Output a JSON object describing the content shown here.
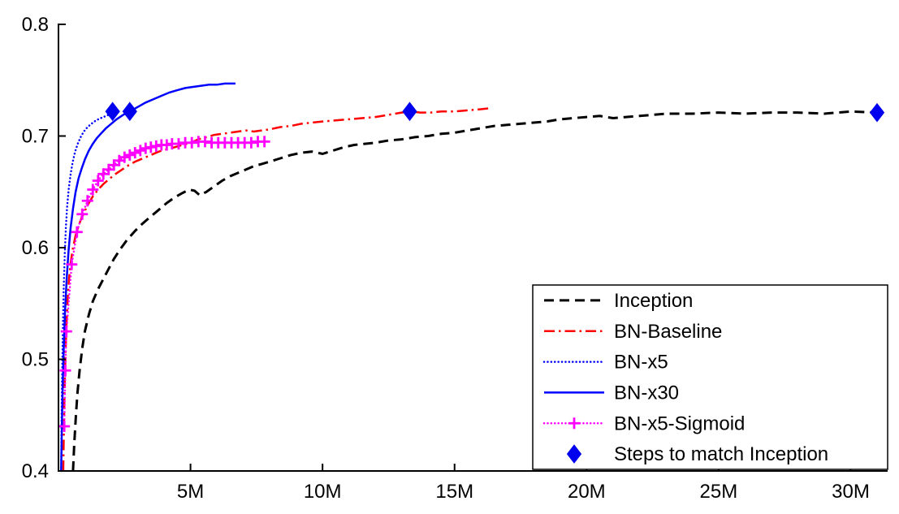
{
  "chart_data": {
    "type": "line",
    "title": "",
    "xlabel": "",
    "ylabel": "",
    "xlim": [
      0,
      31.4
    ],
    "ylim": [
      0.4,
      0.8
    ],
    "grid": false,
    "background": "#ffffff",
    "axis_color": "#000000",
    "legend_position": "bottom-right",
    "xticks": {
      "values": [
        5,
        10,
        15,
        20,
        25,
        30
      ],
      "labels": [
        "5M",
        "10M",
        "15M",
        "20M",
        "25M",
        "30M"
      ]
    },
    "yticks": {
      "values": [
        0.4,
        0.5,
        0.6,
        0.7,
        0.8
      ],
      "labels": [
        "0.4",
        "0.5",
        "0.6",
        "0.7",
        "0.8"
      ]
    },
    "series": [
      {
        "name": "Inception",
        "color": "#000000",
        "line": "dashed",
        "line_width": 3,
        "marker": "none",
        "points": [
          [
            0.55,
            0.4
          ],
          [
            0.6,
            0.425
          ],
          [
            0.66,
            0.45
          ],
          [
            0.72,
            0.47
          ],
          [
            0.8,
            0.49
          ],
          [
            0.9,
            0.51
          ],
          [
            1.0,
            0.525
          ],
          [
            1.15,
            0.54
          ],
          [
            1.3,
            0.552
          ],
          [
            1.5,
            0.563
          ],
          [
            1.7,
            0.572
          ],
          [
            1.9,
            0.581
          ],
          [
            2.1,
            0.59
          ],
          [
            2.35,
            0.599
          ],
          [
            2.6,
            0.607
          ],
          [
            2.9,
            0.615
          ],
          [
            3.2,
            0.622
          ],
          [
            3.5,
            0.628
          ],
          [
            3.8,
            0.634
          ],
          [
            4.1,
            0.64
          ],
          [
            4.4,
            0.645
          ],
          [
            4.7,
            0.649
          ],
          [
            4.95,
            0.652
          ],
          [
            5.15,
            0.651
          ],
          [
            5.35,
            0.647
          ],
          [
            5.6,
            0.65
          ],
          [
            5.9,
            0.655
          ],
          [
            6.2,
            0.66
          ],
          [
            6.5,
            0.664
          ],
          [
            6.8,
            0.667
          ],
          [
            7.1,
            0.67
          ],
          [
            7.4,
            0.673
          ],
          [
            7.7,
            0.675
          ],
          [
            8.0,
            0.677
          ],
          [
            8.4,
            0.68
          ],
          [
            8.8,
            0.683
          ],
          [
            9.2,
            0.685
          ],
          [
            9.6,
            0.686
          ],
          [
            10.0,
            0.684
          ],
          [
            10.4,
            0.687
          ],
          [
            10.8,
            0.69
          ],
          [
            11.2,
            0.692
          ],
          [
            11.6,
            0.693
          ],
          [
            12.0,
            0.694
          ],
          [
            12.5,
            0.696
          ],
          [
            13.0,
            0.697
          ],
          [
            13.5,
            0.699
          ],
          [
            14.0,
            0.7
          ],
          [
            14.5,
            0.702
          ],
          [
            15.0,
            0.703
          ],
          [
            15.5,
            0.705
          ],
          [
            16.0,
            0.707
          ],
          [
            16.5,
            0.709
          ],
          [
            17.0,
            0.71
          ],
          [
            17.5,
            0.711
          ],
          [
            18.0,
            0.712
          ],
          [
            18.5,
            0.713
          ],
          [
            19.0,
            0.715
          ],
          [
            19.5,
            0.716
          ],
          [
            20.0,
            0.717
          ],
          [
            20.5,
            0.718
          ],
          [
            21.0,
            0.716
          ],
          [
            21.5,
            0.717
          ],
          [
            22.0,
            0.718
          ],
          [
            22.5,
            0.719
          ],
          [
            23.0,
            0.72
          ],
          [
            24.0,
            0.72
          ],
          [
            25.0,
            0.721
          ],
          [
            26.0,
            0.72
          ],
          [
            27.0,
            0.721
          ],
          [
            28.0,
            0.721
          ],
          [
            29.0,
            0.72
          ],
          [
            30.0,
            0.722
          ],
          [
            31.0,
            0.721
          ]
        ]
      },
      {
        "name": "BN-Baseline",
        "color": "#ff0000",
        "line": "dashdot",
        "line_width": 2.5,
        "marker": "none",
        "points": [
          [
            0.18,
            0.4
          ],
          [
            0.2,
            0.43
          ],
          [
            0.23,
            0.47
          ],
          [
            0.26,
            0.5
          ],
          [
            0.3,
            0.53
          ],
          [
            0.35,
            0.555
          ],
          [
            0.4,
            0.572
          ],
          [
            0.47,
            0.588
          ],
          [
            0.55,
            0.6
          ],
          [
            0.65,
            0.611
          ],
          [
            0.75,
            0.619
          ],
          [
            0.85,
            0.625
          ],
          [
            1.0,
            0.633
          ],
          [
            1.15,
            0.64
          ],
          [
            1.3,
            0.646
          ],
          [
            1.5,
            0.652
          ],
          [
            1.7,
            0.657
          ],
          [
            1.9,
            0.661
          ],
          [
            2.1,
            0.665
          ],
          [
            2.35,
            0.669
          ],
          [
            2.6,
            0.673
          ],
          [
            2.9,
            0.677
          ],
          [
            3.2,
            0.68
          ],
          [
            3.5,
            0.683
          ],
          [
            3.8,
            0.686
          ],
          [
            4.1,
            0.688
          ],
          [
            4.4,
            0.69
          ],
          [
            4.7,
            0.692
          ],
          [
            5.0,
            0.694
          ],
          [
            5.3,
            0.697
          ],
          [
            5.6,
            0.699
          ],
          [
            5.9,
            0.701
          ],
          [
            6.2,
            0.702
          ],
          [
            6.5,
            0.703
          ],
          [
            6.8,
            0.704
          ],
          [
            7.1,
            0.705
          ],
          [
            7.4,
            0.704
          ],
          [
            7.7,
            0.705
          ],
          [
            8.0,
            0.706
          ],
          [
            8.4,
            0.708
          ],
          [
            8.8,
            0.709
          ],
          [
            9.2,
            0.711
          ],
          [
            9.6,
            0.712
          ],
          [
            10.0,
            0.713
          ],
          [
            10.5,
            0.714
          ],
          [
            11.0,
            0.715
          ],
          [
            11.5,
            0.716
          ],
          [
            12.0,
            0.717
          ],
          [
            12.5,
            0.719
          ],
          [
            13.0,
            0.721
          ],
          [
            13.3,
            0.722
          ],
          [
            13.7,
            0.721
          ],
          [
            14.1,
            0.721
          ],
          [
            14.5,
            0.722
          ],
          [
            15.0,
            0.722
          ],
          [
            15.5,
            0.723
          ],
          [
            16.0,
            0.724
          ],
          [
            16.4,
            0.725
          ]
        ]
      },
      {
        "name": "BN-x5",
        "color": "#0000ff",
        "line": "dotted",
        "line_width": 2.5,
        "marker": "none",
        "points": [
          [
            0.1,
            0.4
          ],
          [
            0.12,
            0.45
          ],
          [
            0.14,
            0.49
          ],
          [
            0.17,
            0.53
          ],
          [
            0.2,
            0.565
          ],
          [
            0.24,
            0.595
          ],
          [
            0.28,
            0.618
          ],
          [
            0.33,
            0.637
          ],
          [
            0.39,
            0.653
          ],
          [
            0.46,
            0.666
          ],
          [
            0.54,
            0.677
          ],
          [
            0.63,
            0.686
          ],
          [
            0.73,
            0.693
          ],
          [
            0.84,
            0.699
          ],
          [
            0.96,
            0.704
          ],
          [
            1.1,
            0.708
          ],
          [
            1.25,
            0.711
          ],
          [
            1.42,
            0.714
          ],
          [
            1.6,
            0.716
          ],
          [
            1.8,
            0.718
          ],
          [
            2.0,
            0.72
          ],
          [
            2.15,
            0.721
          ]
        ]
      },
      {
        "name": "BN-x30",
        "color": "#0000ff",
        "line": "solid",
        "line_width": 2.5,
        "marker": "none",
        "points": [
          [
            0.1,
            0.4
          ],
          [
            0.13,
            0.44
          ],
          [
            0.16,
            0.475
          ],
          [
            0.2,
            0.51
          ],
          [
            0.25,
            0.543
          ],
          [
            0.31,
            0.572
          ],
          [
            0.38,
            0.597
          ],
          [
            0.46,
            0.618
          ],
          [
            0.55,
            0.635
          ],
          [
            0.65,
            0.65
          ],
          [
            0.76,
            0.662
          ],
          [
            0.88,
            0.671
          ],
          [
            1.0,
            0.679
          ],
          [
            1.15,
            0.687
          ],
          [
            1.3,
            0.693
          ],
          [
            1.45,
            0.698
          ],
          [
            1.6,
            0.702
          ],
          [
            1.8,
            0.707
          ],
          [
            2.0,
            0.711
          ],
          [
            2.2,
            0.715
          ],
          [
            2.45,
            0.719
          ],
          [
            2.7,
            0.722
          ],
          [
            3.0,
            0.726
          ],
          [
            3.3,
            0.73
          ],
          [
            3.6,
            0.733
          ],
          [
            3.9,
            0.736
          ],
          [
            4.2,
            0.739
          ],
          [
            4.5,
            0.741
          ],
          [
            4.8,
            0.743
          ],
          [
            5.1,
            0.744
          ],
          [
            5.4,
            0.745
          ],
          [
            5.7,
            0.746
          ],
          [
            6.0,
            0.746
          ],
          [
            6.3,
            0.747
          ],
          [
            6.7,
            0.747
          ]
        ]
      },
      {
        "name": "BN-x5-Sigmoid",
        "color": "#ff00ff",
        "line": "dotted",
        "line_width": 2.5,
        "marker": "plus",
        "points": [
          [
            0.22,
            0.44
          ],
          [
            0.26,
            0.49
          ],
          [
            0.3,
            0.525
          ],
          [
            0.5,
            0.585
          ],
          [
            0.7,
            0.614
          ],
          [
            0.9,
            0.63
          ],
          [
            1.1,
            0.642
          ],
          [
            1.3,
            0.652
          ],
          [
            1.5,
            0.66
          ],
          [
            1.7,
            0.666
          ],
          [
            1.9,
            0.67
          ],
          [
            2.1,
            0.674
          ],
          [
            2.3,
            0.678
          ],
          [
            2.5,
            0.681
          ],
          [
            2.7,
            0.683
          ],
          [
            2.9,
            0.685
          ],
          [
            3.1,
            0.687
          ],
          [
            3.3,
            0.689
          ],
          [
            3.5,
            0.69
          ],
          [
            3.7,
            0.691
          ],
          [
            3.9,
            0.692
          ],
          [
            4.1,
            0.692
          ],
          [
            4.3,
            0.693
          ],
          [
            4.55,
            0.693
          ],
          [
            4.8,
            0.694
          ],
          [
            5.05,
            0.694
          ],
          [
            5.3,
            0.695
          ],
          [
            5.55,
            0.695
          ],
          [
            5.8,
            0.694
          ],
          [
            6.05,
            0.694
          ],
          [
            6.3,
            0.694
          ],
          [
            6.55,
            0.694
          ],
          [
            6.8,
            0.694
          ],
          [
            7.05,
            0.694
          ],
          [
            7.3,
            0.694
          ],
          [
            7.55,
            0.695
          ],
          [
            7.8,
            0.695
          ]
        ]
      },
      {
        "name": "Steps to match Inception",
        "color": "#0000ee",
        "line": "none",
        "line_width": 0,
        "marker": "diamond",
        "points": [
          [
            2.05,
            0.722
          ],
          [
            2.7,
            0.722
          ],
          [
            13.3,
            0.722
          ],
          [
            31.0,
            0.721
          ]
        ]
      }
    ]
  }
}
